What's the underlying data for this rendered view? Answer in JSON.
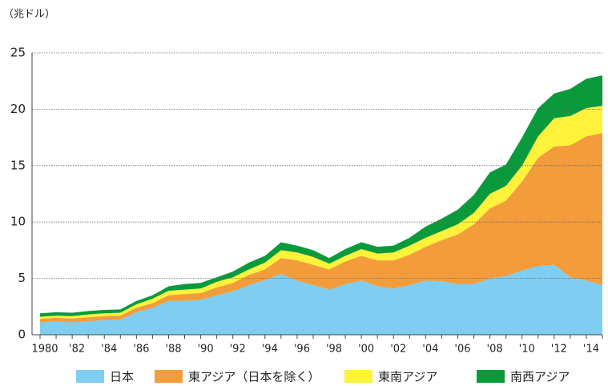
{
  "chart_data": {
    "type": "stacked_area",
    "unit_label": "（兆ドル）",
    "categories": [
      "1980",
      null,
      "'82",
      null,
      "'84",
      null,
      "'86",
      null,
      "'88",
      null,
      "'90",
      null,
      "'92",
      null,
      "'94",
      null,
      "'96",
      null,
      "'98",
      null,
      "'00",
      null,
      "'02",
      null,
      "'04",
      null,
      "'06",
      null,
      "'08",
      null,
      "'10",
      null,
      "'12",
      null,
      "'14",
      null
    ],
    "series": [
      {
        "name": "日本",
        "color": "#7fcdf0",
        "values": [
          1.1,
          1.2,
          1.1,
          1.2,
          1.3,
          1.35,
          2.0,
          2.4,
          3.0,
          3.0,
          3.1,
          3.5,
          3.85,
          4.4,
          4.85,
          5.4,
          4.8,
          4.4,
          4.0,
          4.5,
          4.8,
          4.3,
          4.1,
          4.4,
          4.8,
          4.75,
          4.5,
          4.5,
          5.0,
          5.2,
          5.7,
          6.1,
          6.2,
          5.1,
          4.8,
          4.4
        ]
      },
      {
        "name": "東アジア（日本を除く）",
        "color": "#f39c3c",
        "values": [
          0.3,
          0.3,
          0.35,
          0.35,
          0.35,
          0.35,
          0.4,
          0.4,
          0.5,
          0.6,
          0.6,
          0.7,
          0.75,
          0.9,
          0.95,
          1.4,
          1.8,
          1.8,
          1.8,
          2.0,
          2.2,
          2.3,
          2.5,
          2.7,
          3.0,
          3.65,
          4.4,
          5.3,
          6.2,
          6.7,
          7.9,
          9.6,
          10.5,
          11.7,
          12.8,
          13.5
        ]
      },
      {
        "name": "東南アジア",
        "color": "#fff23a",
        "values": [
          0.2,
          0.2,
          0.2,
          0.25,
          0.25,
          0.25,
          0.3,
          0.4,
          0.4,
          0.4,
          0.4,
          0.5,
          0.5,
          0.5,
          0.6,
          0.7,
          0.7,
          0.7,
          0.5,
          0.5,
          0.6,
          0.6,
          0.7,
          0.8,
          0.8,
          0.8,
          0.9,
          1.0,
          1.3,
          1.3,
          1.4,
          1.9,
          2.5,
          2.6,
          2.5,
          2.4
        ]
      },
      {
        "name": "南西アジア",
        "color": "#0a9a3c",
        "values": [
          0.3,
          0.3,
          0.3,
          0.3,
          0.3,
          0.3,
          0.3,
          0.3,
          0.4,
          0.5,
          0.5,
          0.4,
          0.5,
          0.6,
          0.6,
          0.7,
          0.6,
          0.6,
          0.5,
          0.6,
          0.6,
          0.6,
          0.6,
          0.7,
          1.0,
          1.1,
          1.3,
          1.6,
          1.9,
          1.9,
          2.5,
          2.5,
          2.2,
          2.4,
          2.6,
          2.7
        ]
      }
    ],
    "ylim": [
      0,
      25
    ],
    "yticks": [
      0,
      5,
      10,
      15,
      20,
      25
    ],
    "grid": true
  }
}
